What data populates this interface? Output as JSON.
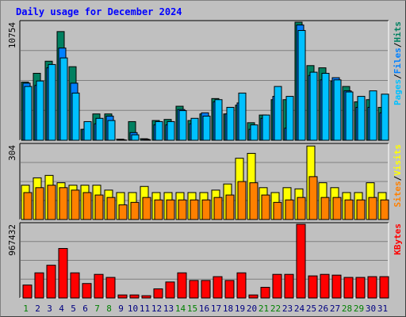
{
  "title": "Daily usage for December 2024",
  "chart_data": {
    "type": "bar",
    "categories": [
      "1",
      "2",
      "3",
      "4",
      "5",
      "6",
      "7",
      "8",
      "9",
      "10",
      "11",
      "12",
      "13",
      "14",
      "15",
      "16",
      "17",
      "18",
      "19",
      "20",
      "21",
      "22",
      "23",
      "24",
      "25",
      "26",
      "27",
      "28",
      "29",
      "30",
      "31"
    ],
    "weekend_days": [
      "1",
      "7",
      "8",
      "14",
      "15",
      "21",
      "22",
      "28",
      "29"
    ],
    "panels": [
      {
        "id": "pages_files_hits",
        "ymax_label": "10754",
        "ymax": 10754,
        "legend": [
          "Pages",
          "/",
          "Files",
          "/",
          "Hits"
        ],
        "legend_colors": [
          "#00c0ff",
          "#000000",
          "#0080ff",
          "#000000",
          "#008060"
        ],
        "series": [
          {
            "name": "Hits",
            "color": "#008060",
            "values": [
              5300,
              6100,
              7200,
              9900,
              6700,
              1000,
              2400,
              2400,
              100,
              1700,
              140,
              1800,
              1900,
              3100,
              1800,
              2400,
              3800,
              2400,
              3200,
              1600,
              2300,
              3700,
              3700,
              10754,
              6800,
              6600,
              5400,
              4900,
              3500,
              3700,
              3000
            ]
          },
          {
            "name": "Files",
            "color": "#0080ff",
            "values": [
              5200,
              5000,
              6600,
              8400,
              5200,
              1000,
              1500,
              2200,
              50,
              700,
              100,
              1400,
              1400,
              2800,
              1500,
              2500,
              3500,
              2400,
              3400,
              1000,
              2000,
              4000,
              1100,
              10500,
              5900,
              5500,
              5700,
              4500,
              3000,
              3000,
              2500
            ]
          },
          {
            "name": "Pages",
            "color": "#00c0ff",
            "values": [
              4900,
              5400,
              6900,
              7500,
              4300,
              1700,
              2000,
              1800,
              20,
              500,
              50,
              1700,
              1700,
              2700,
              2000,
              2200,
              3700,
              3000,
              4300,
              1400,
              2300,
              4900,
              4000,
              10000,
              6200,
              6100,
              5500,
              4400,
              4000,
              4500,
              4200
            ]
          }
        ]
      },
      {
        "id": "visits_sites",
        "ymax_label": "304",
        "ymax": 304,
        "legend": [
          "Sites",
          "/",
          "Visits"
        ],
        "legend_colors": [
          "#ff8000",
          "#000000",
          "#ffff00"
        ],
        "series": [
          {
            "name": "Visits",
            "color": "#ffff00",
            "values": [
              140,
              170,
              180,
              150,
              140,
              140,
              140,
              120,
              110,
              110,
              135,
              110,
              110,
              110,
              110,
              110,
              120,
              145,
              250,
              270,
              130,
              110,
              130,
              125,
              300,
              150,
              130,
              110,
              110,
              150,
              110
            ]
          },
          {
            "name": "Sites",
            "color": "#ff8000",
            "values": [
              110,
              130,
              140,
              130,
              120,
              110,
              100,
              90,
              60,
              70,
              90,
              80,
              80,
              80,
              80,
              80,
              90,
              100,
              155,
              150,
              100,
              70,
              80,
              90,
              175,
              90,
              90,
              80,
              80,
              90,
              80
            ]
          }
        ]
      },
      {
        "id": "kbytes",
        "ymax_label": "967432",
        "ymax": 967432,
        "legend": [
          "KBytes"
        ],
        "legend_colors": [
          "#ff0000"
        ],
        "series": [
          {
            "name": "KBytes",
            "color": "#ff0000",
            "values": [
              170000,
              330000,
              430000,
              650000,
              330000,
              190000,
              310000,
              270000,
              40000,
              40000,
              30000,
              120000,
              210000,
              330000,
              230000,
              230000,
              280000,
              230000,
              330000,
              40000,
              140000,
              310000,
              310000,
              967432,
              290000,
              310000,
              300000,
              270000,
              270000,
              280000,
              280000
            ]
          }
        ]
      }
    ]
  }
}
